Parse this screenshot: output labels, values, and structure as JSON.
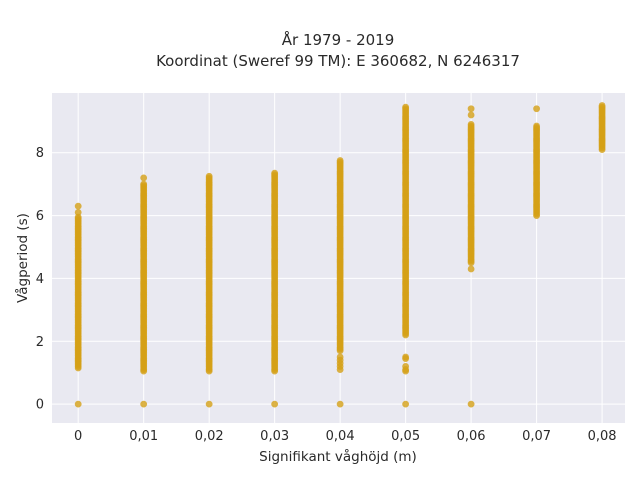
{
  "chart_data": {
    "type": "scatter",
    "title": "År 1979 - 2019",
    "subtitle": "Koordinat (Sweref 99 TM): E 360682, N 6246317",
    "xlabel": "Signifikant våghöjd (m)",
    "ylabel": "Vågperiod (s)",
    "x_ticks": [
      "0",
      "0,01",
      "0,02",
      "0,03",
      "0,04",
      "0,05",
      "0,06",
      "0,07",
      "0,08"
    ],
    "y_ticks": [
      "0",
      "2",
      "4",
      "6",
      "8"
    ],
    "xlim": [
      -0.004,
      0.0835
    ],
    "ylim": [
      -0.6,
      9.9
    ],
    "grid": true,
    "legend": "none",
    "marker_color": "#d4a017",
    "background_color": "#e9e9f1",
    "series": [
      {
        "points_by_x": [
          {
            "x": 0.0,
            "zero": true,
            "y_min": 1.15,
            "y_max": 5.95,
            "outliers": [
              6.1,
              6.3
            ]
          },
          {
            "x": 0.01,
            "zero": true,
            "y_min": 1.05,
            "y_max": 7.0,
            "outliers": [
              7.2
            ]
          },
          {
            "x": 0.02,
            "zero": true,
            "y_min": 1.05,
            "y_max": 7.25,
            "outliers": []
          },
          {
            "x": 0.03,
            "zero": true,
            "y_min": 1.05,
            "y_max": 7.35,
            "outliers": []
          },
          {
            "x": 0.04,
            "zero": true,
            "y_min": 1.7,
            "y_max": 7.75,
            "outliers": [
              1.1,
              1.2,
              1.3,
              1.4,
              1.5
            ]
          },
          {
            "x": 0.05,
            "zero": true,
            "y_min": 2.2,
            "y_max": 9.45,
            "outliers": [
              1.05,
              1.1,
              1.2,
              1.45,
              1.5
            ]
          },
          {
            "x": 0.06,
            "zero": true,
            "y_min": 4.5,
            "y_max": 8.9,
            "outliers": [
              4.3,
              9.2,
              9.4
            ]
          },
          {
            "x": 0.07,
            "zero": false,
            "y_min": 6.0,
            "y_max": 8.85,
            "outliers": [
              9.4
            ]
          },
          {
            "x": 0.08,
            "zero": false,
            "y_min": 8.1,
            "y_max": 9.5,
            "outliers": []
          }
        ]
      }
    ]
  }
}
